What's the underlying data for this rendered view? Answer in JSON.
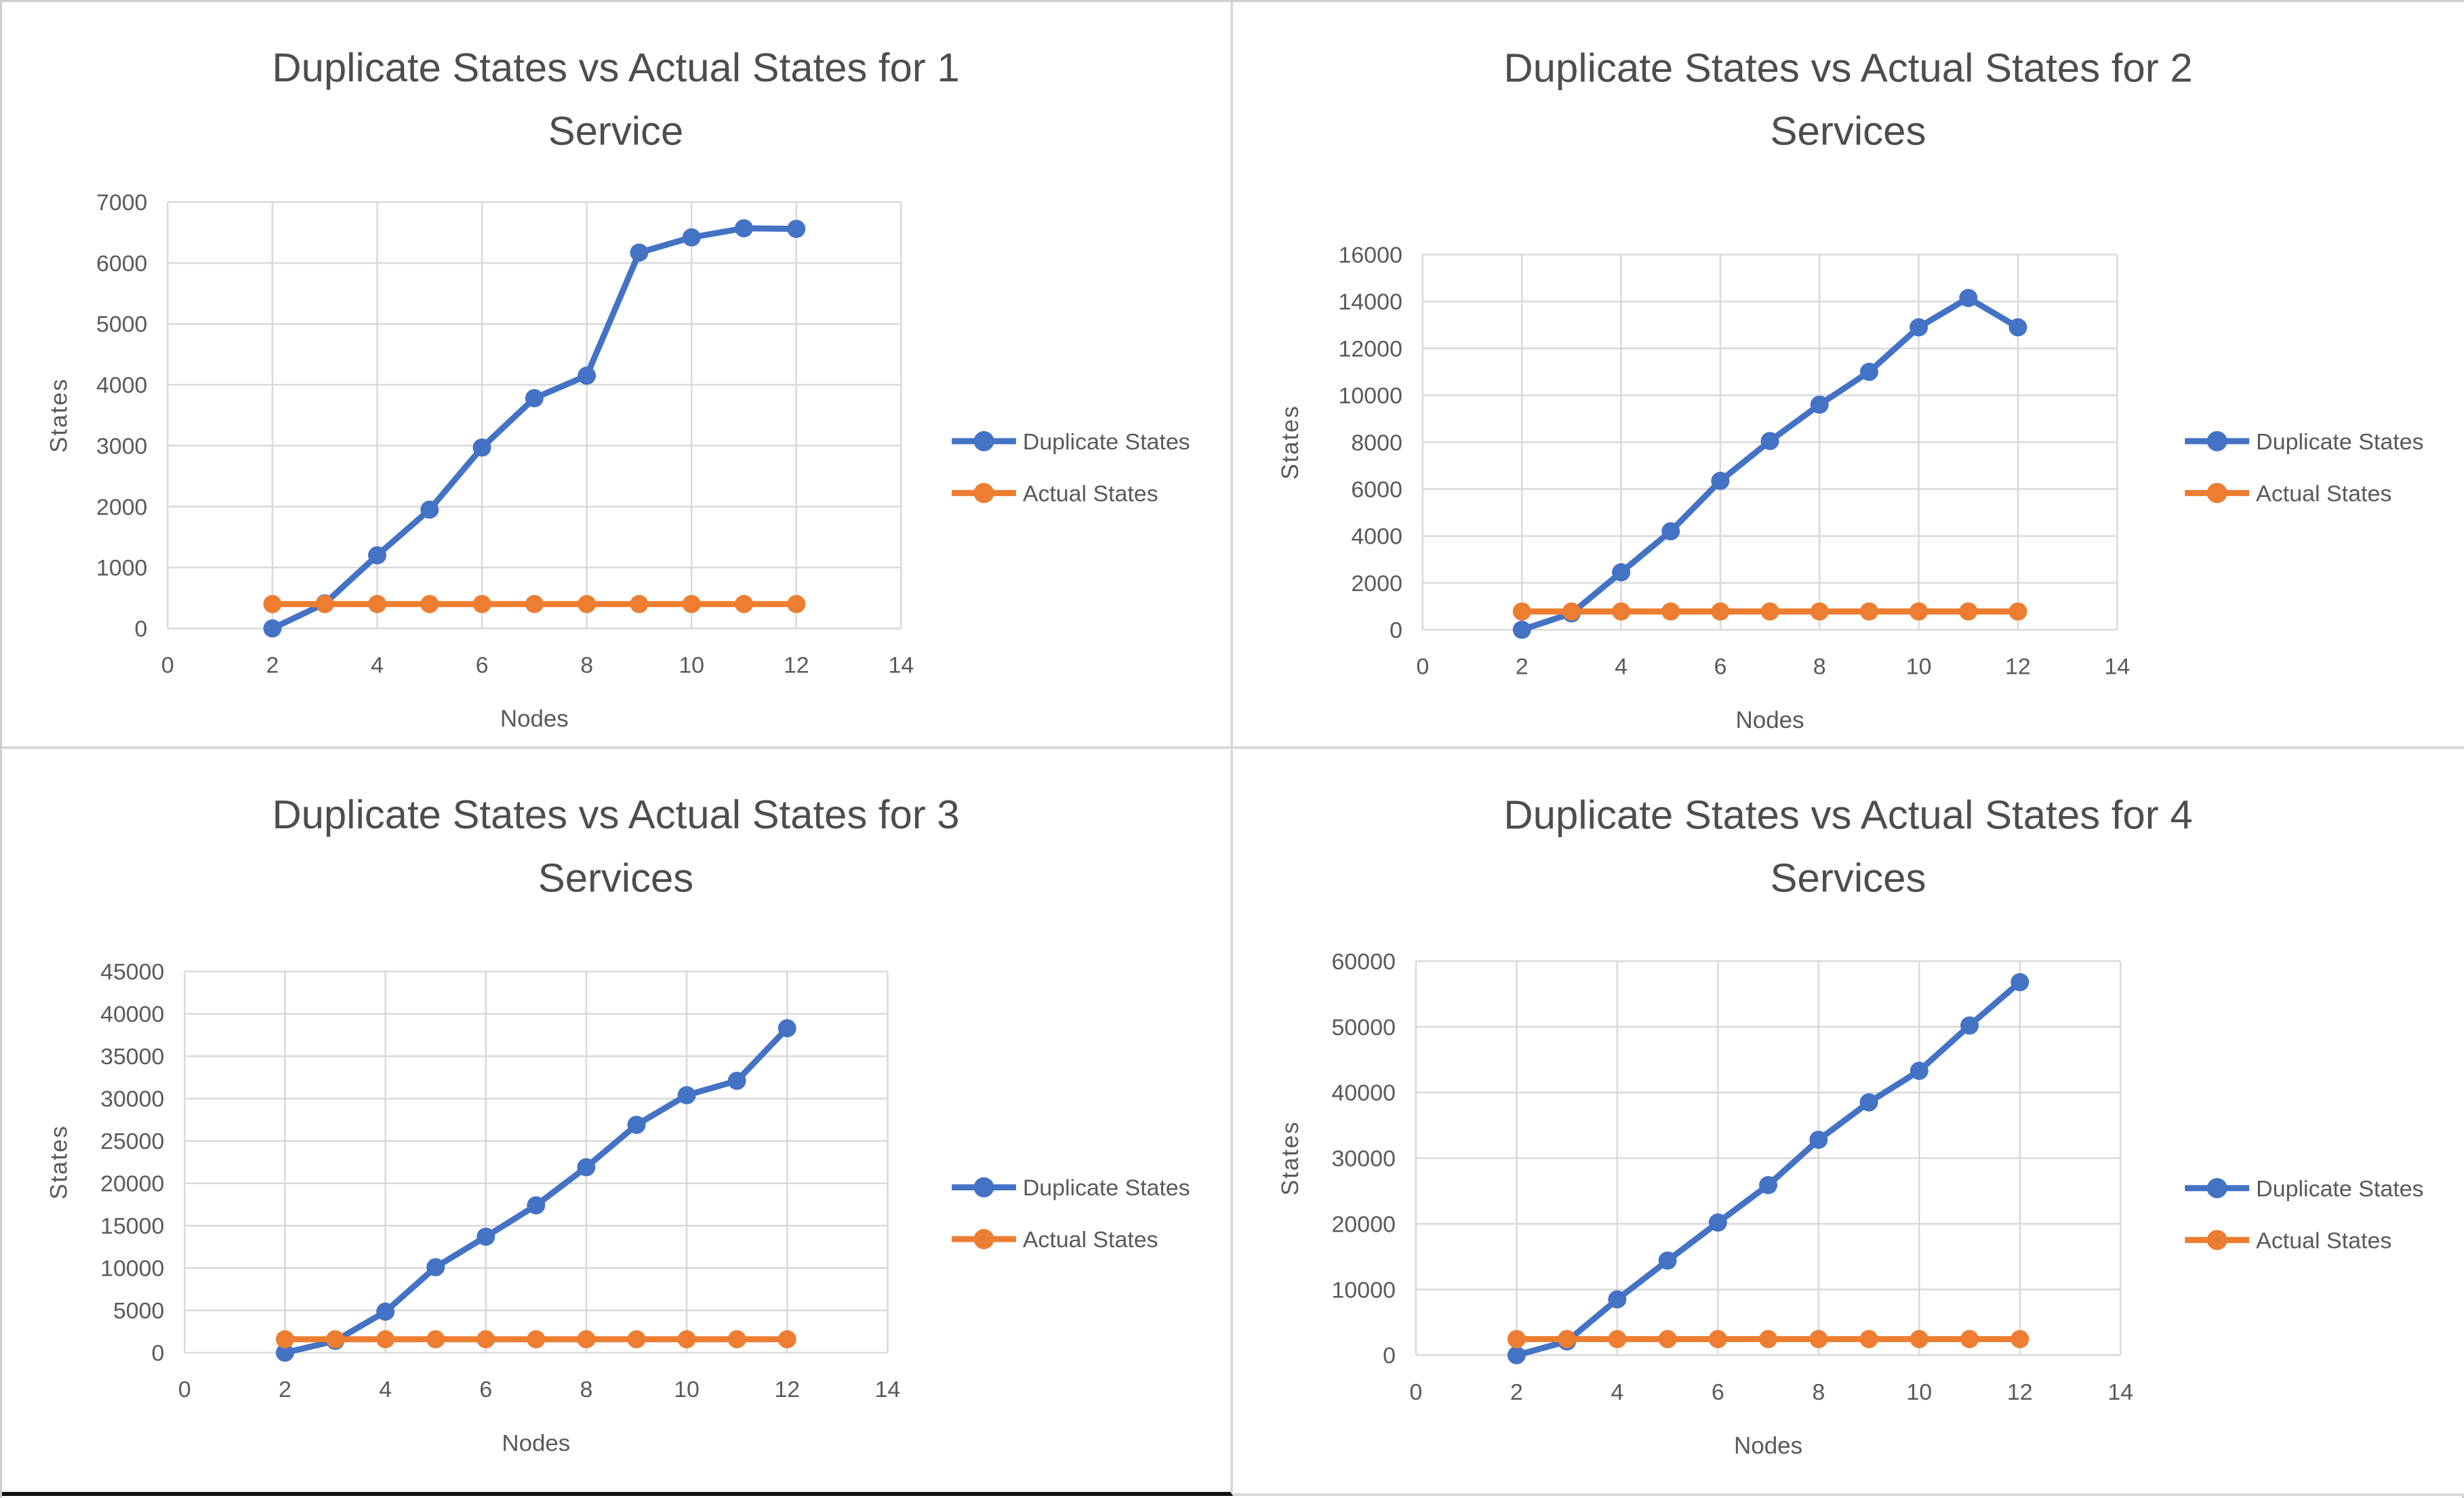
{
  "page": {
    "background": "#ffffff",
    "divider_color": "#d9d9d9",
    "grid_color": "#d9d9d9",
    "axis_color": "#bfbfbf",
    "text_color": "#595959",
    "title_color": "#4d4d4d",
    "series_colors": {
      "duplicate": "#4472C4",
      "actual": "#ED7D31"
    }
  },
  "legend": {
    "items": [
      {
        "label": "Duplicate States",
        "color": "#4472C4"
      },
      {
        "label": "Actual States",
        "color": "#ED7D31"
      }
    ]
  },
  "chart_data": [
    {
      "type": "line",
      "title": "Duplicate States vs Actual States for 1 Service",
      "title_lines": [
        "Duplicate States vs Actual States for 1",
        "Service"
      ],
      "xlabel": "Nodes",
      "ylabel": "States",
      "xlim": [
        0,
        14
      ],
      "x_tick_step": 2,
      "ylim": [
        0,
        7000
      ],
      "y_tick_step": 1000,
      "grid": true,
      "legend_position": "right",
      "x": [
        2,
        3,
        4,
        5,
        6,
        7,
        8,
        9,
        10,
        11,
        12
      ],
      "series": [
        {
          "name": "Duplicate States",
          "color": "#4472C4",
          "values": [
            0,
            410,
            1200,
            1950,
            2970,
            3780,
            4150,
            6170,
            6420,
            6570,
            6560
          ]
        },
        {
          "name": "Actual States",
          "color": "#ED7D31",
          "values": [
            400,
            400,
            400,
            400,
            400,
            400,
            400,
            400,
            400,
            400,
            400
          ]
        }
      ]
    },
    {
      "type": "line",
      "title": "Duplicate States vs Actual States for 2 Services",
      "title_lines": [
        "Duplicate States vs Actual States for 2",
        "Services"
      ],
      "xlabel": "Nodes",
      "ylabel": "States",
      "xlim": [
        0,
        14
      ],
      "x_tick_step": 2,
      "ylim": [
        0,
        16000
      ],
      "y_tick_step": 2000,
      "grid": true,
      "legend_position": "right",
      "x": [
        2,
        3,
        4,
        5,
        6,
        7,
        8,
        9,
        10,
        11,
        12
      ],
      "series": [
        {
          "name": "Duplicate States",
          "color": "#4472C4",
          "values": [
            0,
            700,
            2450,
            4200,
            6350,
            8050,
            9600,
            11000,
            12900,
            14150,
            12900
          ]
        },
        {
          "name": "Actual States",
          "color": "#ED7D31",
          "values": [
            780,
            780,
            780,
            780,
            780,
            780,
            780,
            780,
            780,
            780,
            780
          ]
        }
      ]
    },
    {
      "type": "line",
      "title": "Duplicate States vs Actual States for 3 Services",
      "title_lines": [
        "Duplicate States vs Actual States for 3",
        "Services"
      ],
      "xlabel": "Nodes",
      "ylabel": "States",
      "xlim": [
        0,
        14
      ],
      "x_tick_step": 2,
      "ylim": [
        0,
        45000
      ],
      "y_tick_step": 5000,
      "grid": true,
      "legend_position": "right",
      "x": [
        2,
        3,
        4,
        5,
        6,
        7,
        8,
        9,
        10,
        11,
        12
      ],
      "series": [
        {
          "name": "Duplicate States",
          "color": "#4472C4",
          "values": [
            0,
            1400,
            4850,
            10100,
            13700,
            17400,
            21900,
            26900,
            30400,
            32100,
            38300
          ]
        },
        {
          "name": "Actual States",
          "color": "#ED7D31",
          "values": [
            1590,
            1590,
            1590,
            1590,
            1590,
            1590,
            1590,
            1590,
            1590,
            1590,
            1590
          ]
        }
      ]
    },
    {
      "type": "line",
      "title": "Duplicate States vs Actual States for 4 Services",
      "title_lines": [
        "Duplicate States vs Actual States for 4",
        "Services"
      ],
      "xlabel": "Nodes",
      "ylabel": "States",
      "xlim": [
        0,
        14
      ],
      "x_tick_step": 2,
      "ylim": [
        0,
        60000
      ],
      "y_tick_step": 10000,
      "grid": true,
      "legend_position": "right",
      "x": [
        2,
        3,
        4,
        5,
        6,
        7,
        8,
        9,
        10,
        11,
        12
      ],
      "series": [
        {
          "name": "Duplicate States",
          "color": "#4472C4",
          "values": [
            0,
            2100,
            8500,
            14400,
            20200,
            25900,
            32800,
            38500,
            43300,
            50200,
            56800
          ]
        },
        {
          "name": "Actual States",
          "color": "#ED7D31",
          "values": [
            2450,
            2450,
            2450,
            2450,
            2450,
            2450,
            2450,
            2450,
            2450,
            2450,
            2450
          ]
        }
      ]
    }
  ]
}
